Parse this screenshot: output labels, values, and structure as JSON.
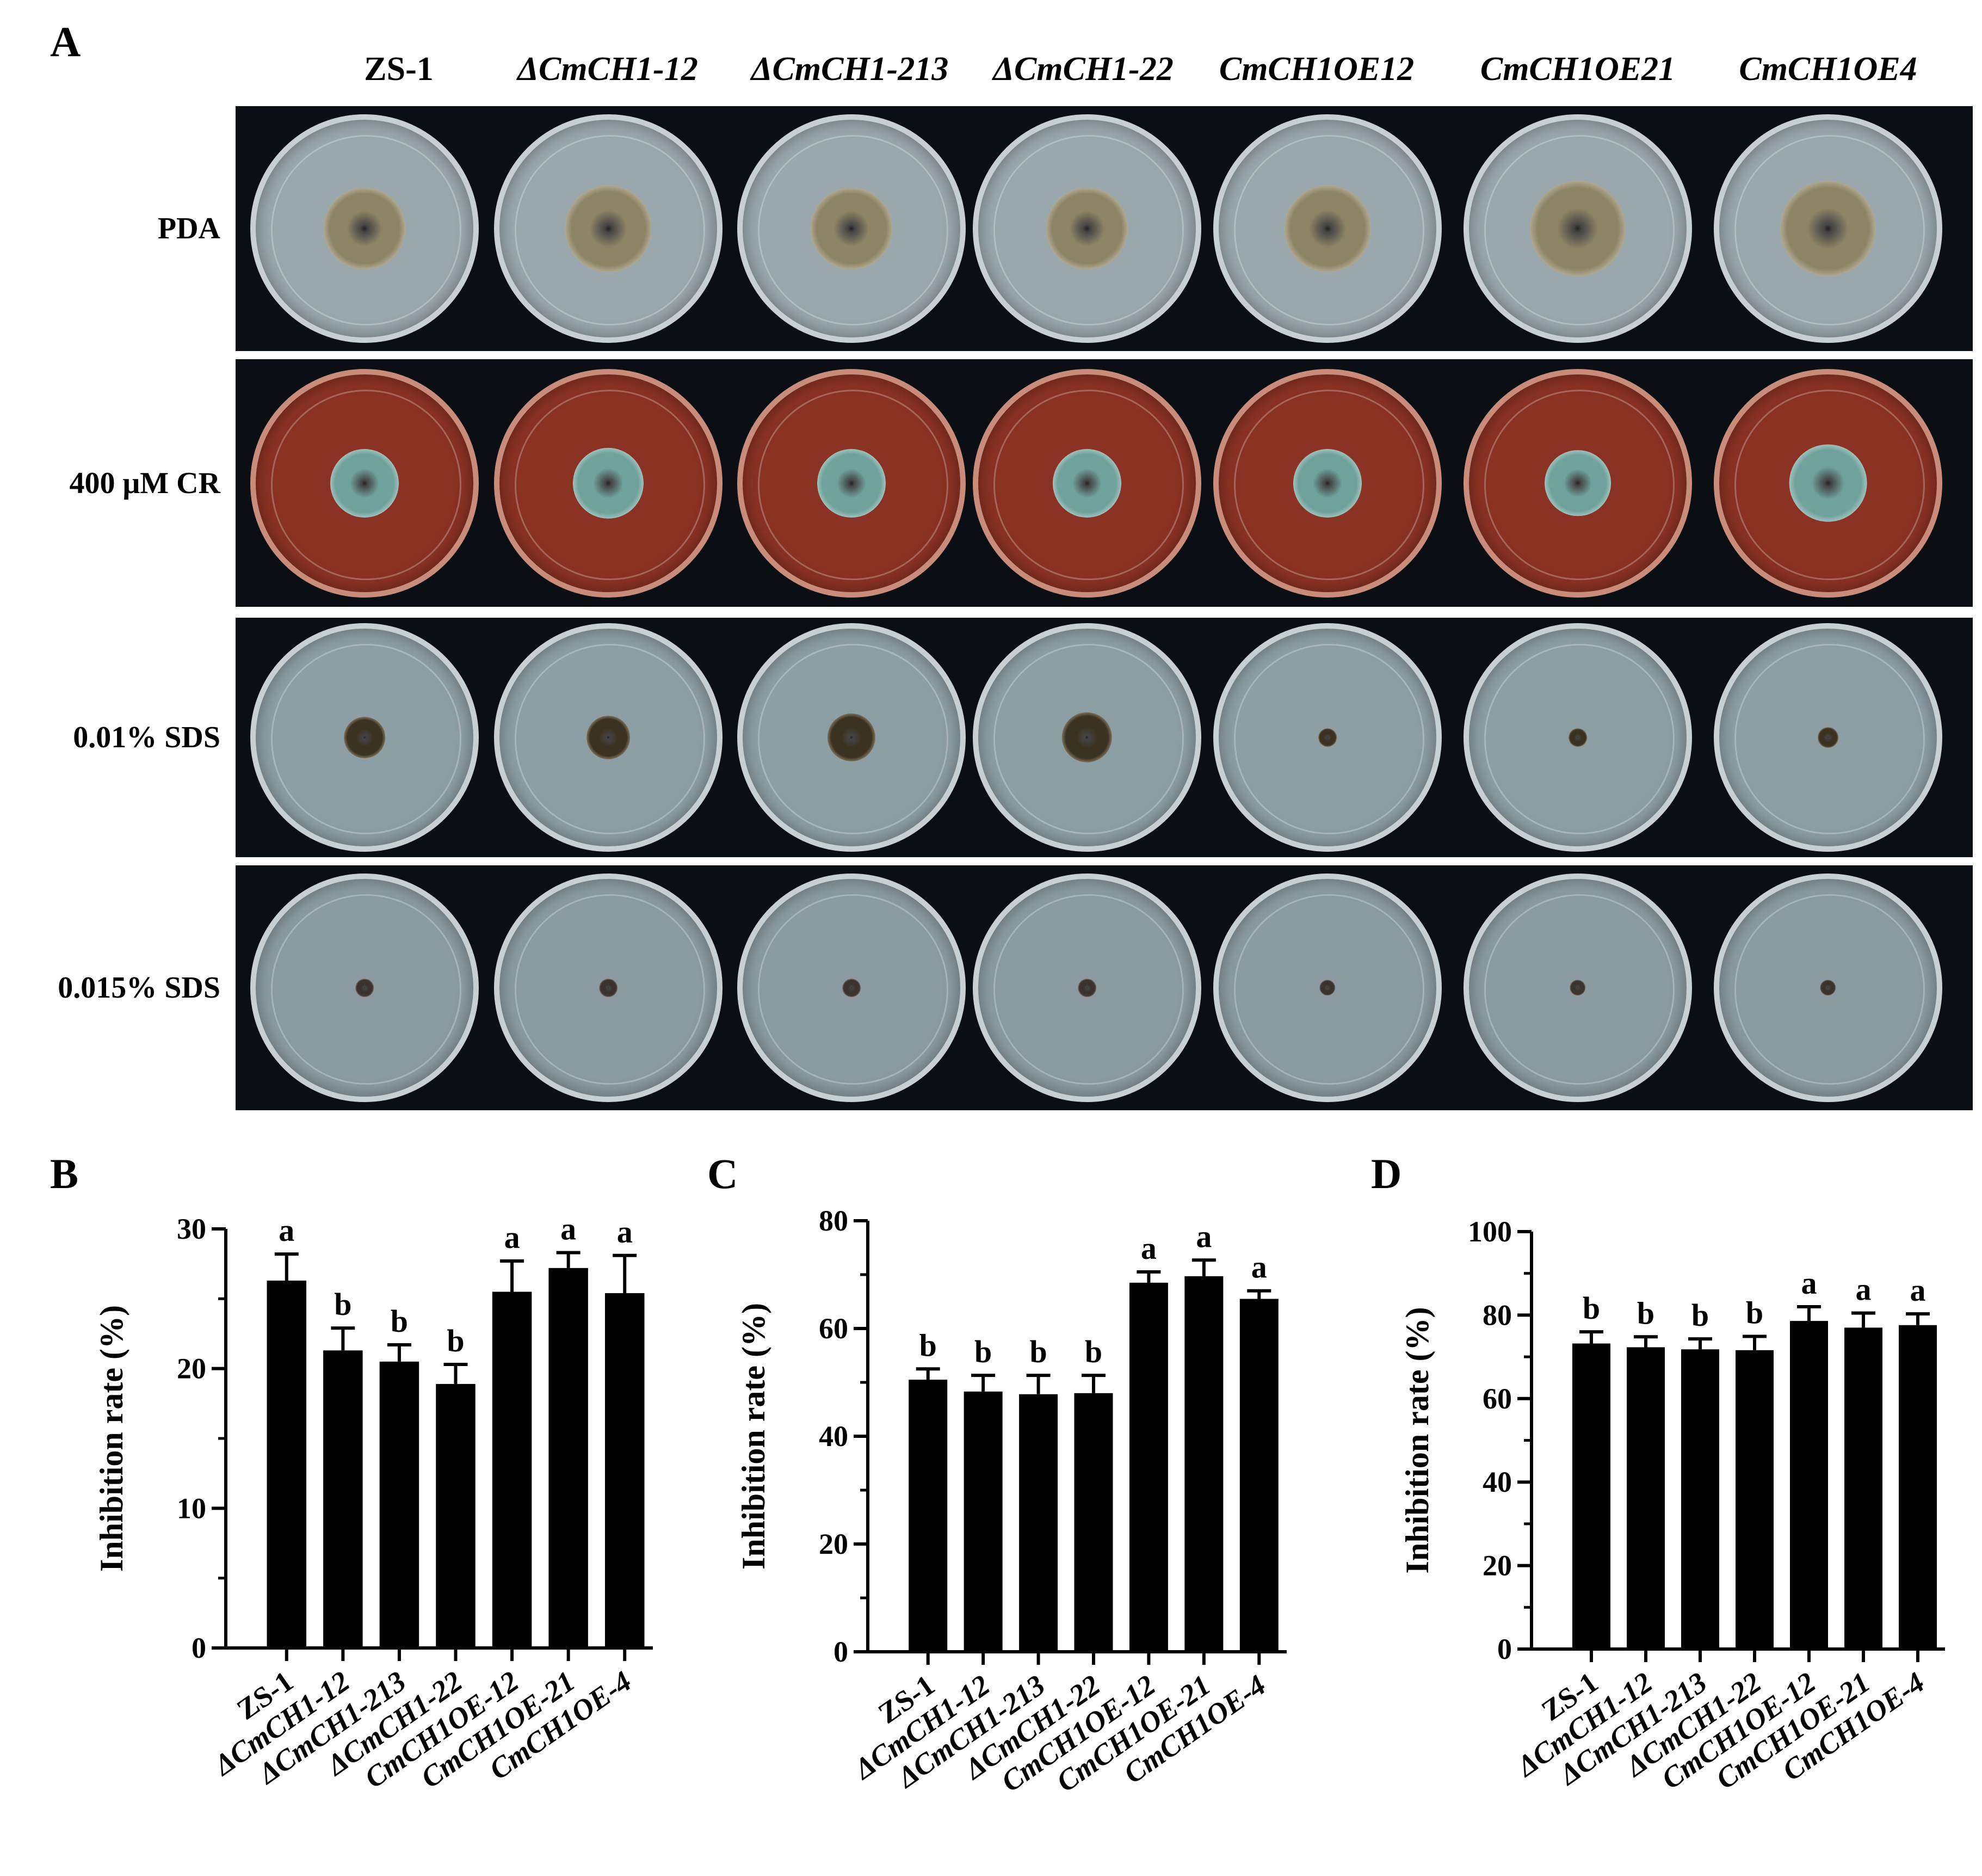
{
  "panel_labels": {
    "a": "A",
    "b": "B",
    "c": "C",
    "d": "D"
  },
  "strains": [
    {
      "label": "ZS-1",
      "italic": false
    },
    {
      "label": "ΔCmCH1-12",
      "italic": true
    },
    {
      "label": "ΔCmCH1-213",
      "italic": true
    },
    {
      "label": "ΔCmCH1-22",
      "italic": true
    },
    {
      "label": "CmCH1OE12",
      "italic": true
    },
    {
      "label": "CmCH1OE21",
      "italic": true
    },
    {
      "label": "CmCH1OE4",
      "italic": true
    }
  ],
  "treatments": [
    {
      "label": "PDA",
      "agar": "#9aa7ad",
      "colony": [
        0.36,
        0.38,
        0.36,
        0.36,
        0.38,
        0.42,
        0.42
      ],
      "color": "#8d8466",
      "edge": "#e8e6dc"
    },
    {
      "label": "400 μM CR",
      "agar": "#8a3224",
      "colony": [
        0.3,
        0.31,
        0.3,
        0.3,
        0.3,
        0.29,
        0.34
      ],
      "color": "#6fa29c",
      "edge": "#eef1ef"
    },
    {
      "label": "0.01% SDS",
      "agar": "#8e9ea5",
      "colony": [
        0.18,
        0.19,
        0.21,
        0.22,
        0.08,
        0.08,
        0.09
      ],
      "color": "#3c3222",
      "edge": "#e4d6b8"
    },
    {
      "label": "0.015% SDS",
      "agar": "#8c9ba2",
      "colony": [
        0.08,
        0.08,
        0.08,
        0.08,
        0.07,
        0.07,
        0.07
      ],
      "color": "#3a3330",
      "edge": "#eadbc8"
    }
  ],
  "chart_data": [
    {
      "panel": "B",
      "type": "bar",
      "ylabel": "Inhibition rate (%)",
      "ylim": [
        0,
        30
      ],
      "yticks": [
        "0",
        "10",
        "20",
        "30"
      ],
      "categories": [
        "ZS-1",
        "ΔCmCH1-12",
        "ΔCmCH1-213",
        "ΔCmCH1-22",
        "CmCH1OE-12",
        "CmCH1OE-21",
        "CmCH1OE-4"
      ],
      "values": [
        26.3,
        21.3,
        20.5,
        18.9,
        25.5,
        27.2,
        25.4
      ],
      "errors": [
        1.9,
        1.6,
        1.2,
        1.4,
        2.2,
        1.1,
        2.7
      ],
      "letters": [
        "a",
        "b",
        "b",
        "b",
        "a",
        "a",
        "a"
      ]
    },
    {
      "panel": "C",
      "type": "bar",
      "ylabel": "Inhibition rate (%)",
      "ylim": [
        0,
        80
      ],
      "yticks": [
        "0",
        "20",
        "40",
        "60",
        "80"
      ],
      "categories": [
        "ZS-1",
        "ΔCmCH1-12",
        "ΔCmCH1-213",
        "ΔCmCH1-22",
        "CmCH1OE-12",
        "CmCH1OE-21",
        "CmCH1OE-4"
      ],
      "values": [
        50.5,
        48.3,
        47.8,
        48.0,
        68.5,
        69.7,
        65.5
      ],
      "errors": [
        2.0,
        3.0,
        3.5,
        3.3,
        2.0,
        3.0,
        1.5
      ],
      "letters": [
        "b",
        "b",
        "b",
        "b",
        "a",
        "a",
        "a"
      ]
    },
    {
      "panel": "D",
      "type": "bar",
      "ylabel": "Inhibition rate (%)",
      "ylim": [
        0,
        100
      ],
      "yticks": [
        "0",
        "20",
        "40",
        "60",
        "80",
        "100"
      ],
      "categories": [
        "ZS-1",
        "ΔCmCH1-12",
        "ΔCmCH1-213",
        "ΔCmCH1-22",
        "CmCH1OE-12",
        "CmCH1OE-21",
        "CmCH1OE-4"
      ],
      "values": [
        73.2,
        72.3,
        71.8,
        71.6,
        78.6,
        77.0,
        77.6
      ],
      "errors": [
        2.8,
        2.5,
        2.5,
        3.3,
        3.4,
        3.5,
        2.7
      ],
      "letters": [
        "b",
        "b",
        "b",
        "b",
        "a",
        "a",
        "a"
      ]
    }
  ]
}
